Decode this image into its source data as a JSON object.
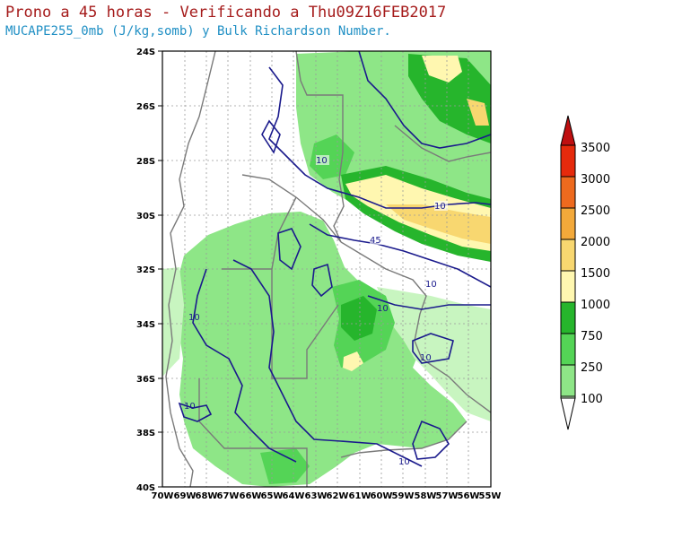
{
  "header": {
    "title": "Prono a 45 horas - Verificando a Thu09Z16FEB2017",
    "subtitle": "MUCAPE255_0mb (J/kg,somb) y Bulk Richardson Number."
  },
  "map": {
    "lon_labels": [
      "70W",
      "69W",
      "68W",
      "67W",
      "66W",
      "65W",
      "64W",
      "63W",
      "62W",
      "61W",
      "60W",
      "59W",
      "58W",
      "57W",
      "56W",
      "55W"
    ],
    "lat_labels": [
      "24S",
      "26S",
      "28S",
      "30S",
      "32S",
      "34S",
      "36S",
      "38S",
      "40S"
    ],
    "contour_labels": [
      "10",
      "10",
      "45",
      "10",
      "10",
      "10",
      "10",
      "10",
      "10"
    ]
  },
  "colorbar": {
    "levels": [
      "100",
      "250",
      "750",
      "1000",
      "1500",
      "2000",
      "2500",
      "3000",
      "3500"
    ],
    "colors": {
      "c100": "#c8f5c0",
      "c250": "#8ee687",
      "c750": "#54d456",
      "c1000": "#26b52c",
      "c1500": "#fff7b0",
      "c2000": "#f8d770",
      "c2500": "#f3a93a",
      "c3000": "#ee6a1e",
      "c3500": "#e62a0c",
      "top": "#bf0f10"
    }
  }
}
